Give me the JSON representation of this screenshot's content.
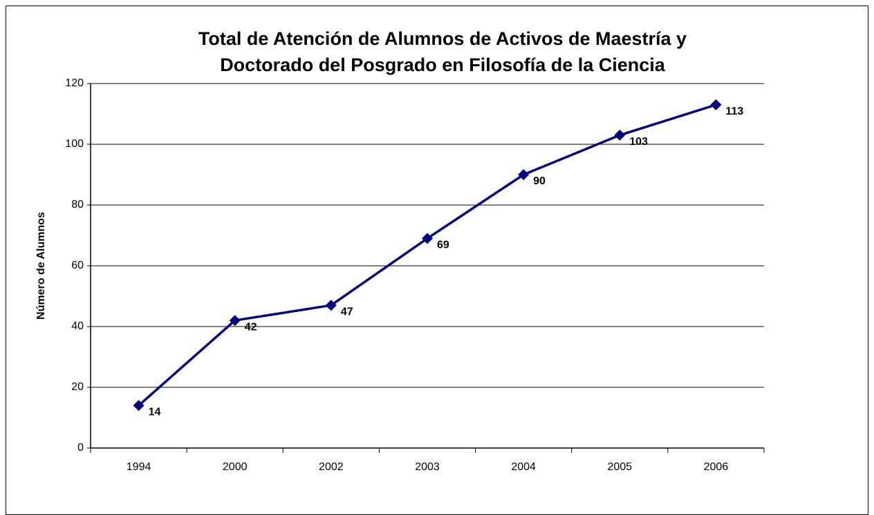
{
  "chart_data": {
    "type": "line",
    "title": [
      "Total de Atención de Alumnos de Activos de Maestría y",
      "Doctorado del Posgrado en Filosofía de la Ciencia"
    ],
    "y_label": "Número de Alumnos",
    "categories": [
      "1994",
      "2000",
      "2002",
      "2003",
      "2004",
      "2005",
      "2006"
    ],
    "series": [
      {
        "name": "Alumnos",
        "color": "#000080",
        "values": [
          14,
          42,
          47,
          69,
          90,
          103,
          113
        ]
      }
    ],
    "ylim": [
      0,
      120
    ],
    "yticks": [
      0,
      20,
      40,
      60,
      80,
      100,
      120
    ],
    "grid": true
  }
}
